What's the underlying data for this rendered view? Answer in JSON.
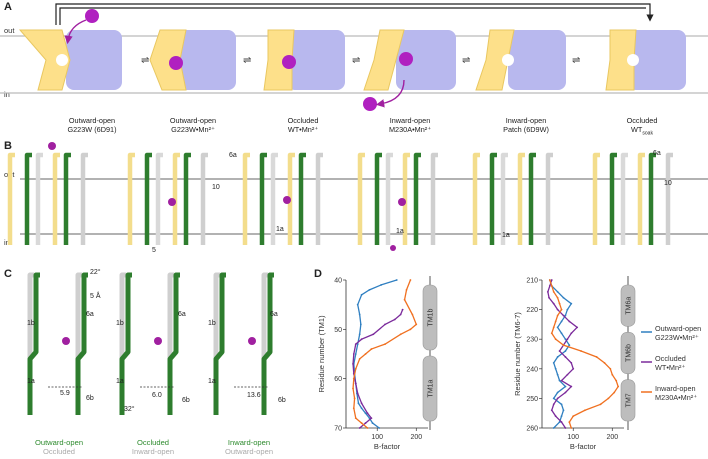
{
  "panels": {
    "a": "A",
    "b": "B",
    "c": "C",
    "d": "D"
  },
  "sides": {
    "out": "out",
    "in": "in"
  },
  "states": [
    {
      "line1": "Outward-open",
      "line2": "G223W (6D91)"
    },
    {
      "line1": "Outward-open",
      "line2": "G223W•Mn²⁺"
    },
    {
      "line1": "Occluded",
      "line2": "WT•Mn²⁺"
    },
    {
      "line1": "Inward-open",
      "line2": "M230A•Mn²⁺"
    },
    {
      "line1": "Inward-open",
      "line2": "Patch (6D9W)"
    },
    {
      "line1": "Occluded",
      "line2": "WT",
      "sub": "soak"
    }
  ],
  "panel_b": {
    "labels": {
      "6a_1": "6a",
      "10_1": "10",
      "5": "5",
      "1a_2": "1a",
      "1a_3": "1a",
      "1a_4": "1a",
      "6a_5": "6a",
      "10_5": "10"
    }
  },
  "panel_c": {
    "helices": {
      "h1b": "1b",
      "h1a": "1a",
      "h6a": "6a",
      "h6b": "6b"
    },
    "values": {
      "angle1": "22°",
      "shift": "5 Å",
      "d1": "5.9",
      "d2": "6.0",
      "angle2": "32°",
      "d3": "13.6"
    },
    "captions": [
      {
        "top": "Outward-open",
        "bottom": "Occluded",
        "top_color": "#2e8b2e"
      },
      {
        "top": "Occluded",
        "bottom": "Inward-open",
        "top_color": "#2e8b2e"
      },
      {
        "top": "Inward-open",
        "bottom": "Outward-open",
        "top_color": "#2e8b2e"
      }
    ]
  },
  "chart_data": [
    {
      "type": "line",
      "xlabel": "B-factor",
      "ylabel": "Residue number (TM1)",
      "xlim": [
        20,
        230
      ],
      "ylim": [
        40,
        70
      ],
      "xticks": [
        "100",
        "200"
      ],
      "yticks": [
        "40",
        "50",
        "60",
        "70"
      ],
      "segments": [
        "TM1b",
        "TM1a"
      ],
      "series": [
        {
          "name": "Outward-open G223W•Mn²⁺",
          "color": "#2f7fc1",
          "points": [
            [
              105,
              70
            ],
            [
              88,
              69
            ],
            [
              80,
              68
            ],
            [
              70,
              67
            ],
            [
              60,
              66
            ],
            [
              52,
              65
            ],
            [
              48,
              63
            ],
            [
              45,
              61
            ],
            [
              42,
              59
            ],
            [
              40,
              57
            ],
            [
              45,
              55
            ],
            [
              50,
              53
            ],
            [
              55,
              51
            ],
            [
              58,
              49
            ],
            [
              55,
              47
            ],
            [
              50,
              45
            ],
            [
              60,
              43
            ],
            [
              80,
              42
            ],
            [
              110,
              41
            ],
            [
              150,
              40
            ]
          ]
        },
        {
          "name": "Occluded WT•Mn²⁺",
          "color": "#7b2a9b",
          "points": [
            [
              55,
              70
            ],
            [
              70,
              69
            ],
            [
              85,
              68
            ],
            [
              75,
              67
            ],
            [
              60,
              65
            ],
            [
              50,
              63
            ],
            [
              45,
              61
            ],
            [
              40,
              59
            ],
            [
              38,
              57
            ],
            [
              40,
              55
            ],
            [
              45,
              53
            ],
            [
              60,
              52
            ],
            [
              90,
              51
            ],
            [
              120,
              49
            ],
            [
              145,
              48
            ],
            [
              160,
              47
            ],
            [
              165,
              46
            ]
          ]
        },
        {
          "name": "Inward-open M230A•Mn²⁺",
          "color": "#f07020",
          "points": [
            [
              75,
              70
            ],
            [
              60,
              69
            ],
            [
              45,
              68
            ],
            [
              40,
              66
            ],
            [
              42,
              64
            ],
            [
              38,
              62
            ],
            [
              40,
              60
            ],
            [
              45,
              58
            ],
            [
              55,
              56
            ],
            [
              70,
              55
            ],
            [
              85,
              54
            ],
            [
              120,
              53
            ],
            [
              160,
              51
            ],
            [
              185,
              50
            ],
            [
              200,
              49
            ],
            [
              190,
              47
            ],
            [
              170,
              44
            ],
            [
              175,
              42
            ],
            [
              185,
              40
            ]
          ]
        }
      ]
    },
    {
      "type": "line",
      "xlabel": "B-factor",
      "ylabel": "Residue number (TM6-7)",
      "xlim": [
        20,
        230
      ],
      "ylim": [
        210,
        260
      ],
      "xticks": [
        "100",
        "200"
      ],
      "yticks": [
        "210",
        "220",
        "230",
        "240",
        "250",
        "260"
      ],
      "segments": [
        "TM6a",
        "TM6b",
        "TM7"
      ],
      "series": [
        {
          "name": "Outward-open G223W•Mn²⁺",
          "color": "#2f7fc1",
          "points": [
            [
              40,
              210
            ],
            [
              45,
              212
            ],
            [
              60,
              214
            ],
            [
              75,
              216
            ],
            [
              95,
              218
            ],
            [
              85,
              220
            ],
            [
              80,
              222
            ],
            [
              70,
              224
            ],
            [
              60,
              226
            ],
            [
              70,
              228
            ],
            [
              80,
              230
            ],
            [
              90,
              232
            ],
            [
              80,
              234
            ],
            [
              60,
              236
            ],
            [
              50,
              238
            ],
            [
              55,
              240
            ],
            [
              60,
              242
            ],
            [
              65,
              244
            ],
            [
              80,
              246
            ],
            [
              60,
              248
            ],
            [
              50,
              250
            ],
            [
              70,
              252
            ],
            [
              75,
              254
            ],
            [
              70,
              256
            ],
            [
              65,
              258
            ],
            [
              50,
              260
            ]
          ]
        },
        {
          "name": "Occluded WT•Mn²⁺",
          "color": "#7b2a9b",
          "points": [
            [
              45,
              210
            ],
            [
              40,
              212
            ],
            [
              35,
              214
            ],
            [
              38,
              216
            ],
            [
              50,
              218
            ],
            [
              60,
              220
            ],
            [
              75,
              222
            ],
            [
              90,
              224
            ],
            [
              110,
              226
            ],
            [
              95,
              228
            ],
            [
              85,
              230
            ],
            [
              75,
              232
            ],
            [
              65,
              234
            ],
            [
              80,
              236
            ],
            [
              95,
              238
            ],
            [
              100,
              240
            ],
            [
              85,
              242
            ],
            [
              70,
              244
            ],
            [
              95,
              246
            ],
            [
              80,
              248
            ],
            [
              60,
              250
            ],
            [
              50,
              252
            ],
            [
              45,
              254
            ],
            [
              55,
              256
            ],
            [
              70,
              258
            ],
            [
              80,
              260
            ]
          ]
        },
        {
          "name": "Inward-open M230A•Mn²⁺",
          "color": "#f07020",
          "points": [
            [
              40,
              210
            ],
            [
              45,
              212
            ],
            [
              50,
              214
            ],
            [
              60,
              216
            ],
            [
              65,
              218
            ],
            [
              70,
              220
            ],
            [
              60,
              222
            ],
            [
              55,
              224
            ],
            [
              50,
              226
            ],
            [
              45,
              228
            ],
            [
              55,
              230
            ],
            [
              75,
              232
            ],
            [
              120,
              234
            ],
            [
              160,
              236
            ],
            [
              180,
              238
            ],
            [
              195,
              240
            ],
            [
              200,
              242
            ],
            [
              210,
              244
            ],
            [
              215,
              246
            ],
            [
              205,
              248
            ],
            [
              190,
              250
            ],
            [
              170,
              252
            ],
            [
              130,
              254
            ],
            [
              100,
              256
            ],
            [
              90,
              258
            ],
            [
              95,
              260
            ]
          ]
        }
      ]
    }
  ]
}
